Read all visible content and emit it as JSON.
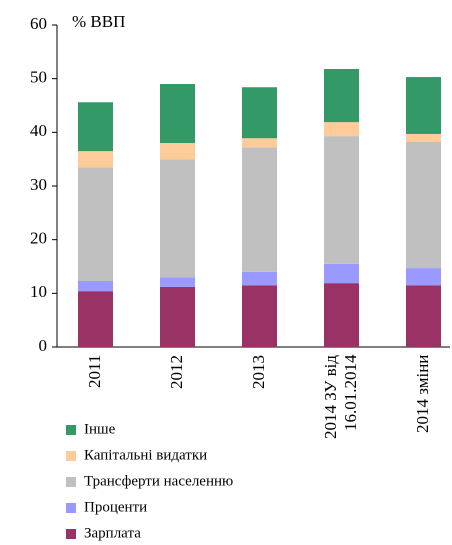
{
  "chart_data": {
    "type": "stacked-bar",
    "y_label": "% ВВП",
    "categories": [
      "2011",
      "2012",
      "2013",
      "2014 ЗУ від 16.01.2014",
      "2014 зміни"
    ],
    "series": [
      {
        "name": "Зарплата",
        "color": "#993366",
        "values": [
          10.4,
          11.2,
          11.5,
          11.9,
          11.5
        ]
      },
      {
        "name": "Проценти",
        "color": "#9999ff",
        "values": [
          1.9,
          1.8,
          2.5,
          3.6,
          3.2
        ]
      },
      {
        "name": "Трансферти населенню",
        "color": "#c0c0c0",
        "values": [
          21.2,
          22.0,
          23.2,
          23.8,
          23.5
        ]
      },
      {
        "name": "Капітальні видатки",
        "color": "#ffcc99",
        "values": [
          3.0,
          3.0,
          1.7,
          2.6,
          1.5
        ]
      },
      {
        "name": "Інше",
        "color": "#339966",
        "values": [
          9.1,
          11.0,
          9.5,
          9.9,
          10.6
        ]
      }
    ],
    "ylim": [
      0,
      60
    ],
    "yticks": [
      0,
      10,
      20,
      30,
      40,
      50,
      60
    ]
  }
}
